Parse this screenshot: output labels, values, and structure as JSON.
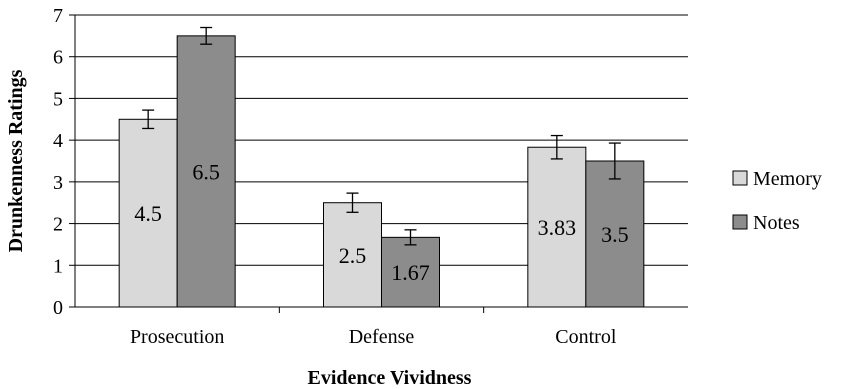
{
  "chart_data": {
    "type": "bar",
    "title": "",
    "xlabel": "Evidence Vividness",
    "ylabel": "Drunkenness Ratings",
    "ylim": [
      0,
      7
    ],
    "yticks": [
      0,
      1,
      2,
      3,
      4,
      5,
      6,
      7
    ],
    "grid": true,
    "legend_position": "right",
    "categories": [
      "Prosecution",
      "Defense",
      "Control"
    ],
    "series": [
      {
        "name": "Memory",
        "color": "#d9d9d9",
        "values": [
          4.5,
          2.5,
          3.83
        ],
        "labels": [
          "4.5",
          "2.5",
          "3.83"
        ],
        "error": [
          0.22,
          0.23,
          0.28
        ]
      },
      {
        "name": "Notes",
        "color": "#8c8c8c",
        "values": [
          6.5,
          1.67,
          3.5
        ],
        "labels": [
          "6.5",
          "1.67",
          "3.5"
        ],
        "error": [
          0.2,
          0.18,
          0.43
        ]
      }
    ]
  }
}
